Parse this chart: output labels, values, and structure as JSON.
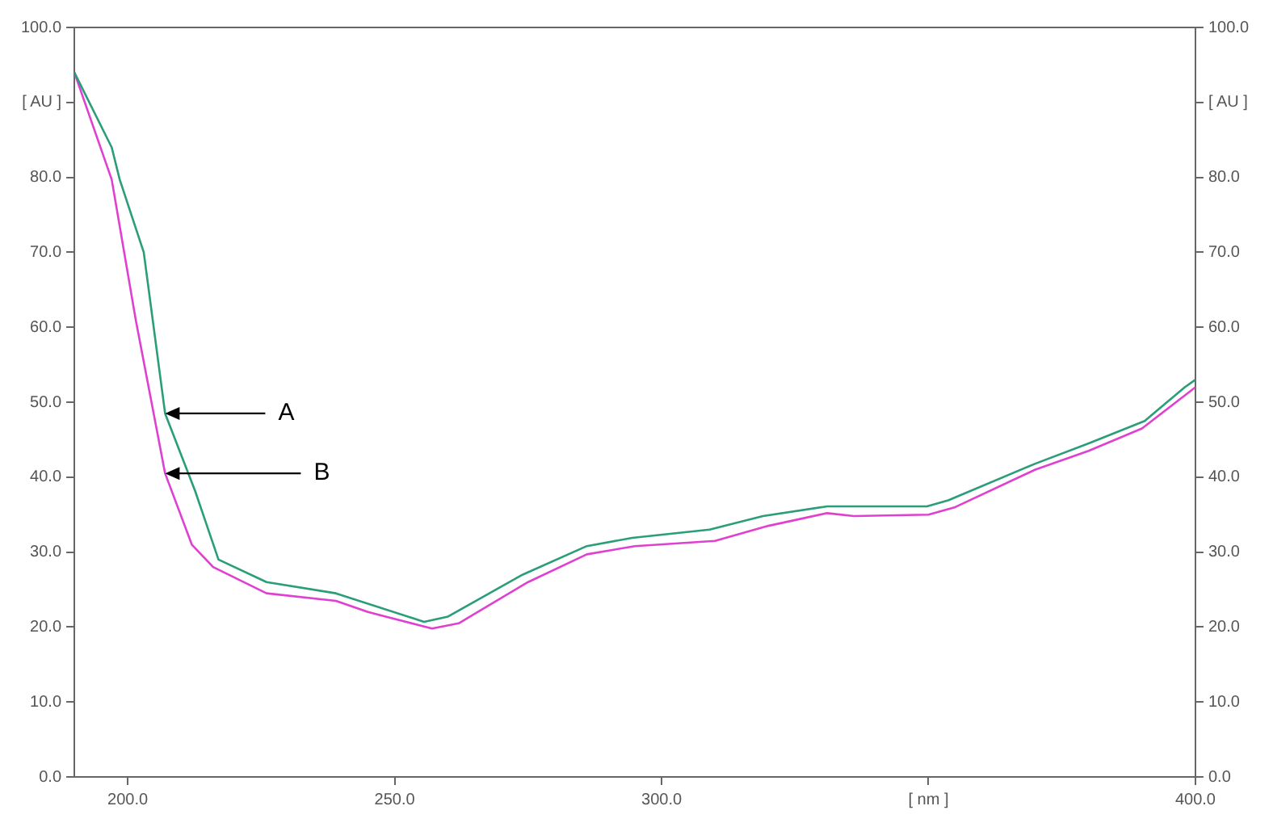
{
  "chart_data": {
    "type": "line",
    "x": [
      190,
      197,
      198.5,
      203,
      207,
      212.6,
      217,
      226,
      239,
      255.5,
      260,
      274,
      286,
      294.5,
      309,
      319,
      331,
      349.7,
      353.7,
      370,
      380,
      390.5,
      398,
      400
    ],
    "series": [
      {
        "name": null,
        "color": "#2a9d7a",
        "values": [
          94,
          84,
          79.7,
          70,
          48.5,
          38.2,
          29,
          26,
          24.5,
          20.7,
          21.4,
          27,
          30.8,
          31.9,
          33,
          34.8,
          36.1,
          36.1,
          36.9,
          41.8,
          44.5,
          47.5,
          52,
          53
        ]
      },
      {
        "name": null,
        "color": "#e040d0",
        "x": [
          190,
          197,
          201.5,
          207,
          212,
          216,
          226,
          239,
          245,
          257,
          262,
          275,
          286,
          295,
          310,
          320,
          331,
          336,
          350,
          355,
          370,
          380,
          390,
          400
        ],
        "values": [
          94,
          79.7,
          61,
          40.5,
          31,
          28,
          24.5,
          23.5,
          22,
          19.8,
          20.5,
          26,
          29.7,
          30.8,
          31.5,
          33.5,
          35.2,
          34.8,
          35,
          36,
          41,
          43.5,
          46.5,
          52
        ]
      }
    ],
    "xlim": [
      190,
      400
    ],
    "xticks": [
      {
        "value": 200,
        "label": "200.0"
      },
      {
        "value": 250,
        "label": "250.0"
      },
      {
        "value": 300,
        "label": "300.0"
      },
      {
        "value": 350,
        "label": "[ nm ]"
      },
      {
        "value": 400,
        "label": "400.0"
      }
    ],
    "ylim": [
      0,
      100
    ],
    "yticks": [
      {
        "value": 0,
        "label": "0.0"
      },
      {
        "value": 10,
        "label": "10.0"
      },
      {
        "value": 20,
        "label": "20.0"
      },
      {
        "value": 30,
        "label": "30.0"
      },
      {
        "value": 40,
        "label": "40.0"
      },
      {
        "value": 50,
        "label": "50.0"
      },
      {
        "value": 60,
        "label": "60.0"
      },
      {
        "value": 70,
        "label": "70.0"
      },
      {
        "value": 80,
        "label": "80.0"
      },
      {
        "value": 90,
        "label": "[ AU ]"
      },
      {
        "value": 100,
        "label": "100.0"
      }
    ],
    "y2lim": [
      0,
      100
    ],
    "y2ticks": [
      {
        "value": 0,
        "label": "0.0"
      },
      {
        "value": 10,
        "label": "10.0"
      },
      {
        "value": 20,
        "label": "20.0"
      },
      {
        "value": 30,
        "label": "30.0"
      },
      {
        "value": 40,
        "label": "40.0"
      },
      {
        "value": 50,
        "label": "50.0"
      },
      {
        "value": 60,
        "label": "60.0"
      },
      {
        "value": 70,
        "label": "70.0"
      },
      {
        "value": 80,
        "label": "80.0"
      },
      {
        "value": 90,
        "label": "[ AU ]"
      },
      {
        "value": 100,
        "label": "100.0"
      }
    ],
    "annotations": [
      {
        "text": "A",
        "x": 207,
        "y": 48.5
      },
      {
        "text": "B",
        "x": 207,
        "y": 40.5
      }
    ],
    "grid": false,
    "legend": false,
    "marker": "none",
    "line_style": "solid"
  }
}
